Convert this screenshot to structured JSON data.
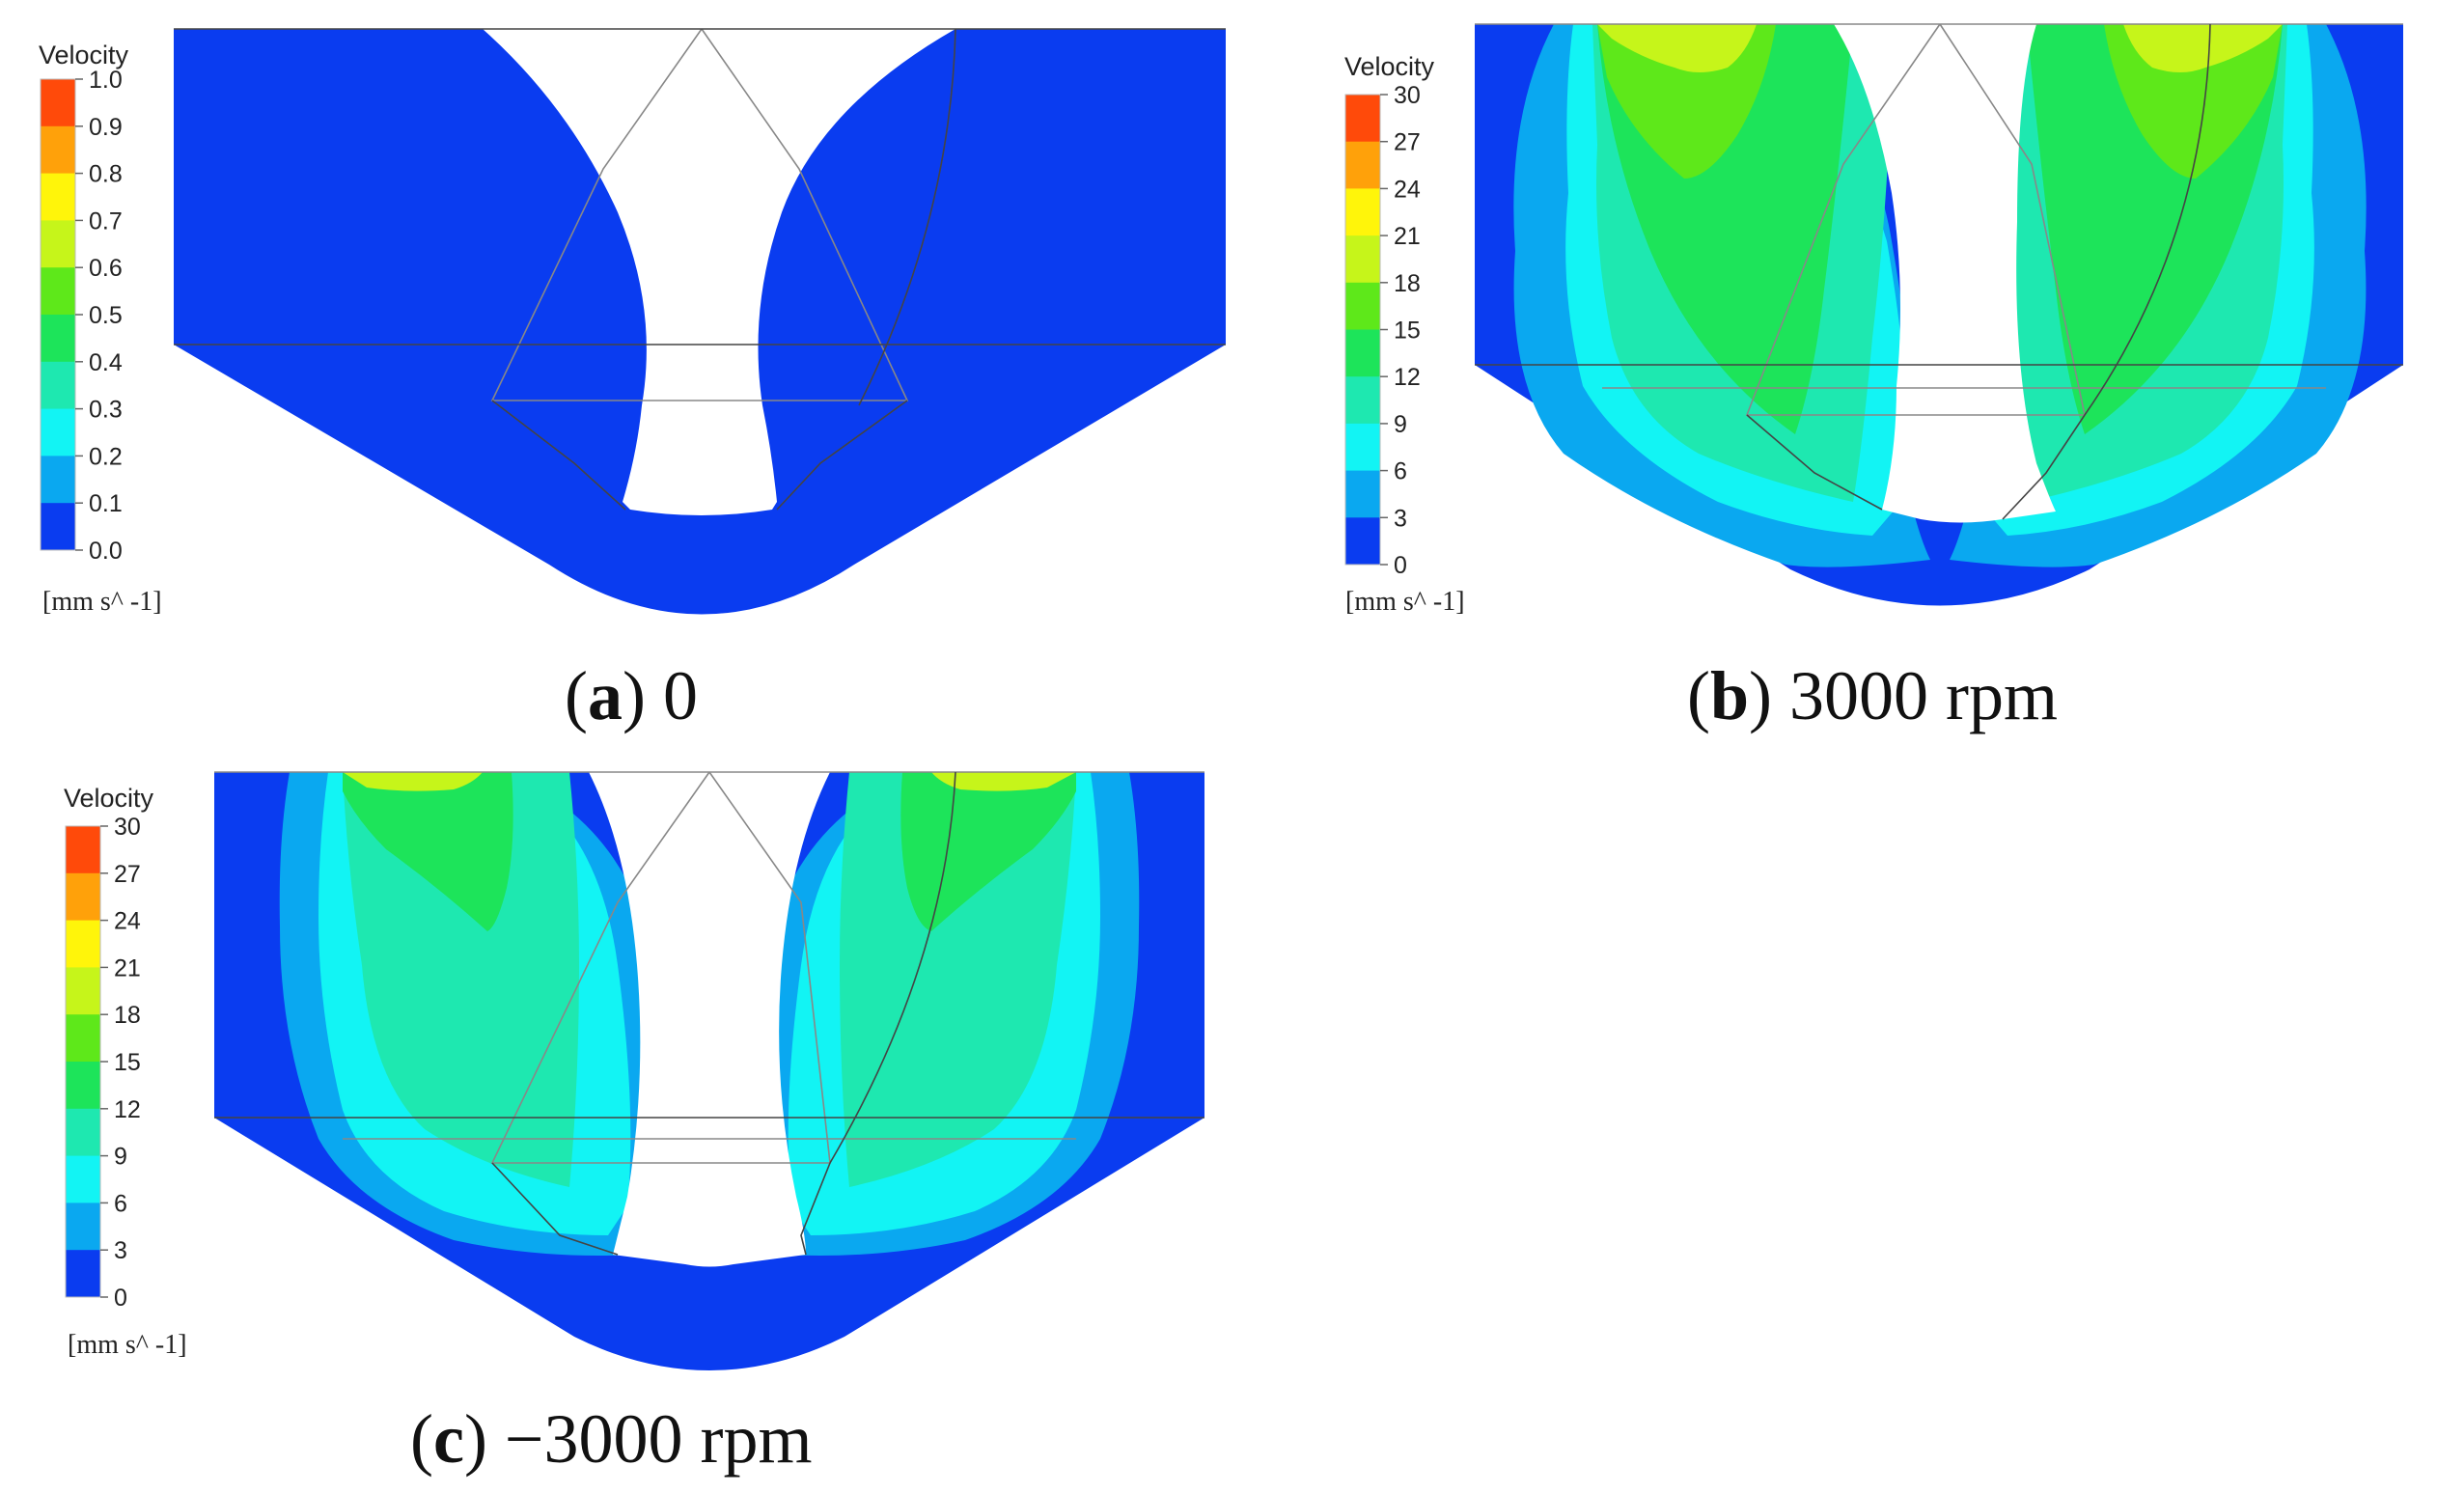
{
  "panels": [
    {
      "id": "a",
      "caption_letter": "a",
      "caption_rest": ") 0",
      "legend": {
        "title": "Velocity",
        "ticks": [
          "1.0",
          "0.9",
          "0.8",
          "0.7",
          "0.6",
          "0.5",
          "0.4",
          "0.3",
          "0.2",
          "0.1",
          "0.0"
        ],
        "unit": "[mm s^ -1]"
      }
    },
    {
      "id": "b",
      "caption_letter": "b",
      "caption_rest": ") 3000 rpm",
      "legend": {
        "title": "Velocity",
        "ticks": [
          "30",
          "27",
          "24",
          "21",
          "18",
          "15",
          "12",
          "9",
          "6",
          "3",
          "0"
        ],
        "unit": "[mm s^ -1]"
      }
    },
    {
      "id": "c",
      "caption_letter": "c",
      "caption_rest": ") −3000 rpm",
      "legend": {
        "title": "Velocity",
        "ticks": [
          "30",
          "27",
          "24",
          "21",
          "18",
          "15",
          "12",
          "9",
          "6",
          "3",
          "0"
        ],
        "unit": "[mm s^ -1]"
      }
    }
  ],
  "colormap": [
    "#ff4a0a",
    "#ffa10a",
    "#fff50a",
    "#c6f51a",
    "#5ee81a",
    "#1de45a",
    "#1ee8b0",
    "#12f4f4",
    "#0aa8f0",
    "#0a3cf0"
  ],
  "colors": {
    "base_blue": "#0a3cf0",
    "light_blue": "#0aa8f0",
    "cyan": "#12f4f4",
    "aqua": "#1ee8b0",
    "green": "#1de45a",
    "lime": "#5ee81a",
    "yellowgreen": "#c6f51a",
    "yellow": "#fff50a"
  }
}
